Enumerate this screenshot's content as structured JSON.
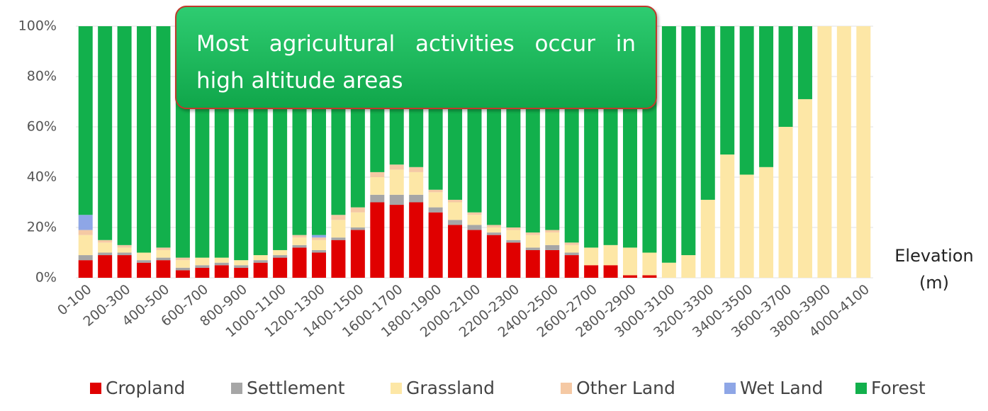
{
  "chart_data": {
    "type": "stacked_bar",
    "annotation": "Most agricultural activities occur in high altitude areas",
    "x_label": "Elevation (m)",
    "categories": [
      "0-100",
      null,
      "200-300",
      null,
      "400-500",
      null,
      "600-700",
      null,
      "800-900",
      null,
      "1000-1100",
      null,
      "1200-1300",
      null,
      "1400-1500",
      null,
      "1600-1700",
      null,
      "1800-1900",
      null,
      "2000-2100",
      null,
      "2200-2300",
      null,
      "2400-2500",
      null,
      "2600-2700",
      null,
      "2800-2900",
      null,
      "3000-3100",
      null,
      "3200-3300",
      null,
      "3400-3500",
      null,
      "3600-3700",
      null,
      "3800-3900",
      null,
      "4000-4100"
    ],
    "series": [
      {
        "name": "Cropland",
        "color": "#e00000",
        "values": [
          7,
          9,
          9,
          6,
          7,
          3,
          4,
          5,
          4,
          6,
          8,
          12,
          10,
          15,
          19,
          30,
          29,
          30,
          26,
          21,
          19,
          17,
          14,
          11,
          11,
          9,
          5,
          5,
          1,
          1,
          0,
          0,
          0,
          0,
          0,
          0,
          0,
          0,
          0,
          0,
          0
        ]
      },
      {
        "name": "Settlement",
        "color": "#a6a6a6",
        "values": [
          2,
          1,
          1,
          1,
          1,
          1,
          1,
          1,
          1,
          1,
          1,
          1,
          1,
          1,
          1,
          3,
          4,
          3,
          2,
          2,
          2,
          1,
          1,
          1,
          2,
          1,
          0,
          0,
          0,
          0,
          0,
          0,
          0,
          0,
          0,
          0,
          0,
          0,
          0,
          0,
          0
        ]
      },
      {
        "name": "Grassland",
        "color": "#fde7a6",
        "values": [
          8,
          4,
          2,
          3,
          3,
          3,
          3,
          2,
          2,
          2,
          2,
          3,
          4,
          7,
          6,
          7,
          10,
          9,
          6,
          7,
          4,
          2,
          4,
          5,
          5,
          3,
          7,
          8,
          11,
          9,
          6,
          9,
          31,
          49,
          41,
          44,
          60,
          71,
          100,
          100,
          100
        ]
      },
      {
        "name": "Other Land",
        "color": "#f5c9a4",
        "values": [
          2,
          1,
          1,
          0,
          1,
          1,
          0,
          0,
          0,
          0,
          0,
          1,
          1,
          2,
          2,
          2,
          2,
          2,
          1,
          1,
          1,
          1,
          1,
          1,
          1,
          1,
          0,
          0,
          0,
          0,
          0,
          0,
          0,
          0,
          0,
          0,
          0,
          0,
          0,
          0,
          0
        ]
      },
      {
        "name": "Wet Land",
        "color": "#8ea6e6",
        "values": [
          6,
          0,
          0,
          0,
          0,
          0,
          0,
          0,
          0,
          0,
          0,
          0,
          1,
          0,
          0,
          0,
          0,
          0,
          0,
          0,
          0,
          0,
          0,
          0,
          0,
          0,
          0,
          0,
          0,
          0,
          0,
          0,
          0,
          0,
          0,
          0,
          0,
          0,
          0,
          0,
          0
        ]
      },
      {
        "name": "Forest",
        "color": "#12b04c",
        "values": [
          75,
          85,
          87,
          90,
          88,
          92,
          92,
          92,
          93,
          91,
          89,
          83,
          83,
          75,
          72,
          58,
          55,
          56,
          65,
          69,
          74,
          79,
          80,
          82,
          81,
          86,
          88,
          87,
          88,
          90,
          94,
          91,
          69,
          51,
          59,
          56,
          40,
          29,
          0,
          0,
          0
        ]
      }
    ],
    "ylim": [
      0,
      100
    ],
    "yticks": [
      {
        "value": 0,
        "label": "0%"
      },
      {
        "value": 20,
        "label": "20%"
      },
      {
        "value": 40,
        "label": "40%"
      },
      {
        "value": 60,
        "label": "60%"
      },
      {
        "value": 80,
        "label": "80%"
      },
      {
        "value": 100,
        "label": "100%"
      }
    ],
    "grid": true,
    "legend": "bottom"
  }
}
